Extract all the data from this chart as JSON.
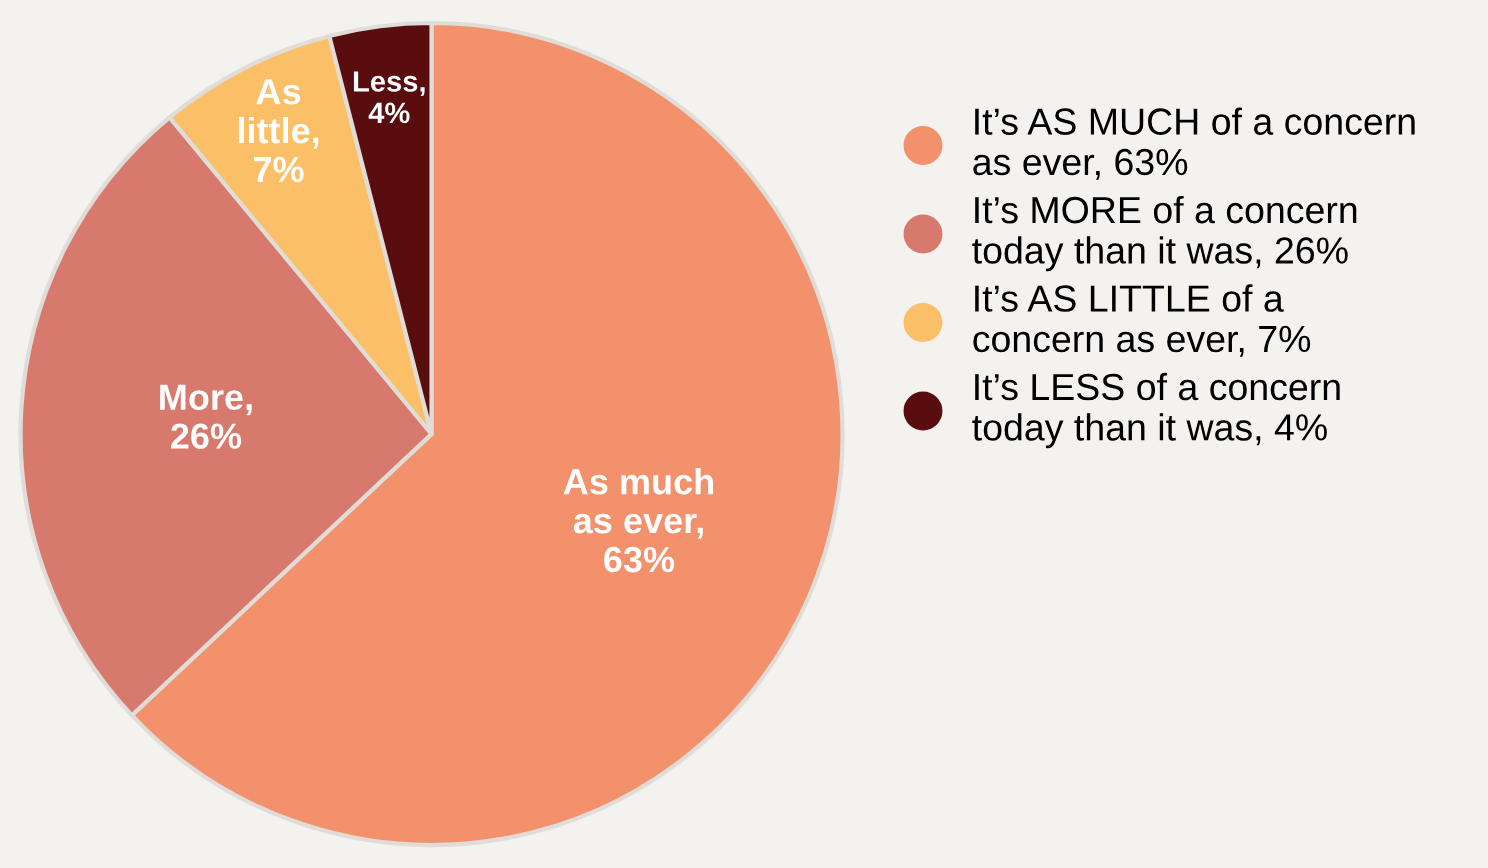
{
  "chart_data": {
    "type": "pie",
    "categories": [
      "It’s AS MUCH of a concern\nas ever, 63%",
      "It’s MORE of a concern\ntoday than it was, 26%",
      "It’s AS LITTLE of a\nconcern as ever, 7%",
      "It’s LESS of a concern\ntoday than it was, 4%"
    ],
    "values": [
      63,
      26,
      7,
      4
    ],
    "colors": [
      "#f2916c",
      "#d77a6d",
      "#fbbf67",
      "#5a0d0e"
    ],
    "value_labels": [
      "As much\nas ever,\n63%",
      "More,\n26%",
      "As\nlittle,\n7%",
      "Less,\n4%"
    ],
    "legend": "right"
  }
}
